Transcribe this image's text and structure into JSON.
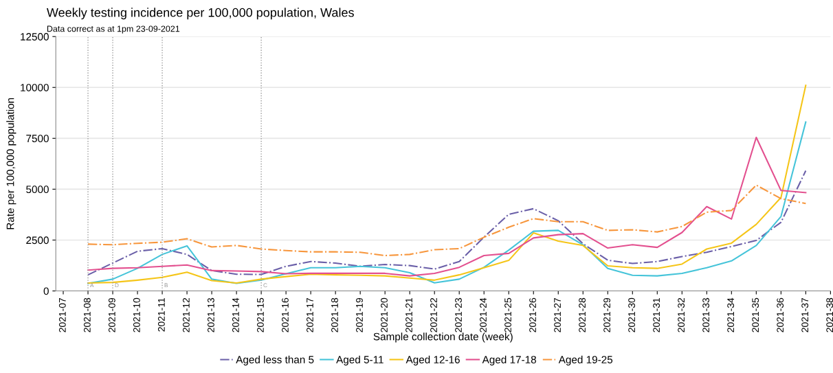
{
  "chart_data": {
    "type": "line",
    "title": "Weekly testing incidence per 100,000 population, Wales",
    "subtitle": "Data correct as at 1pm 23-09-2021",
    "xlabel": "Sample collection date (week)",
    "ylabel": "Rate per 100,000 population",
    "categories": [
      "2021-07",
      "2021-08",
      "2021-09",
      "2021-10",
      "2021-11",
      "2021-12",
      "2021-13",
      "2021-14",
      "2021-15",
      "2021-16",
      "2021-17",
      "2021-18",
      "2021-19",
      "2021-20",
      "2021-21",
      "2021-22",
      "2021-23",
      "2021-24",
      "2021-25",
      "2021-26",
      "2021-27",
      "2021-28",
      "2021-29",
      "2021-30",
      "2021-31",
      "2021-32",
      "2021-33",
      "2021-34",
      "2021-35",
      "2021-36",
      "2021-37",
      "2021-38"
    ],
    "ylim": [
      0,
      12500
    ],
    "yticks": [
      0,
      2500,
      5000,
      7500,
      10000,
      12500
    ],
    "grid": "y",
    "legend": "bottom",
    "series": [
      {
        "name": "Aged less than 5",
        "color": "#6a5fa8",
        "line_style": "dashdot",
        "values": [
          null,
          790,
          1370,
          1950,
          2080,
          1795,
          1000,
          820,
          810,
          1210,
          1445,
          1370,
          1210,
          1300,
          1245,
          1075,
          1445,
          2640,
          3765,
          4040,
          3450,
          2320,
          1510,
          1350,
          1445,
          1690,
          1900,
          2185,
          2480,
          3375,
          5910,
          null
        ]
      },
      {
        "name": "Aged 5-11",
        "color": "#45c4d9",
        "line_style": "solid",
        "values": [
          null,
          370,
          580,
          1110,
          1795,
          2215,
          580,
          370,
          530,
          845,
          1140,
          1140,
          1210,
          1140,
          895,
          400,
          580,
          1160,
          2005,
          2935,
          2975,
          2270,
          1110,
          770,
          740,
          865,
          1140,
          1475,
          2235,
          3660,
          8300,
          null
        ]
      },
      {
        "name": "Aged 12-16",
        "color": "#f5c518",
        "line_style": "solid",
        "values": [
          null,
          390,
          420,
          530,
          665,
          920,
          505,
          390,
          580,
          705,
          820,
          790,
          770,
          740,
          635,
          530,
          790,
          1140,
          1500,
          2850,
          2450,
          2235,
          1235,
          1140,
          1110,
          1320,
          2060,
          2350,
          3270,
          4590,
          10100,
          null
        ]
      },
      {
        "name": "Aged 17-18",
        "color": "#e3508f",
        "line_style": "solid",
        "values": [
          null,
          1025,
          1110,
          1140,
          1210,
          1275,
          1000,
          980,
          950,
          845,
          865,
          865,
          865,
          865,
          740,
          865,
          1160,
          1740,
          1845,
          2605,
          2765,
          2815,
          2110,
          2270,
          2140,
          2870,
          4145,
          3535,
          7545,
          4935,
          4830,
          null
        ]
      },
      {
        "name": "Aged 19-25",
        "color": "#f7963c",
        "line_style": "dashdot",
        "values": [
          null,
          2300,
          2270,
          2340,
          2395,
          2565,
          2160,
          2235,
          2060,
          1985,
          1920,
          1920,
          1900,
          1740,
          1795,
          2025,
          2080,
          2640,
          3130,
          3555,
          3400,
          3400,
          2975,
          3005,
          2900,
          3165,
          3870,
          3955,
          5200,
          4535,
          4295,
          null
        ]
      }
    ],
    "ref_lines": [
      {
        "axis": "x",
        "value": "2021-08",
        "label": "A",
        "color": "#999999",
        "line_style": "dotted"
      },
      {
        "axis": "x",
        "value": "2021-09",
        "label": "D",
        "color": "#999999",
        "line_style": "dotted"
      },
      {
        "axis": "x",
        "value": "2021-11",
        "label": "B",
        "color": "#999999",
        "line_style": "dotted"
      },
      {
        "axis": "x",
        "value": "2021-15",
        "label": "C",
        "color": "#999999",
        "line_style": "dotted"
      }
    ]
  }
}
